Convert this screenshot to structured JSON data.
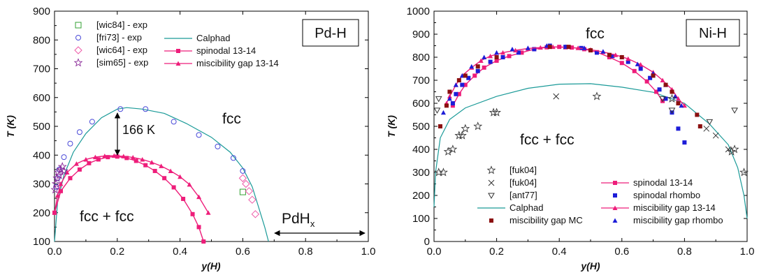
{
  "chart_data": [
    {
      "type": "scatter",
      "title": "Pd-H",
      "xlabel": "y(H)",
      "ylabel": "T (K)",
      "xlim": [
        0,
        1.0
      ],
      "ylim": [
        100,
        900
      ],
      "xticks": [
        "0.0",
        "0.2",
        "0.4",
        "0.6",
        "0.8",
        "1.0"
      ],
      "yticks": [
        "100",
        "200",
        "300",
        "400",
        "500",
        "600",
        "700",
        "800",
        "900"
      ],
      "grid": false,
      "legend_left": [
        "[wic84] - exp",
        "[fri73] - exp",
        "[wic64] - exp",
        "[sim65] - exp"
      ],
      "legend_right": [
        "Calphad",
        "spinodal 13-14",
        "miscibility gap 13-14"
      ],
      "annotations": {
        "region_top": "fcc",
        "region_bottom": "fcc + fcc",
        "delta": "166 K",
        "phase_base": "PdH",
        "phase_sub": "x"
      },
      "colors": {
        "calphad": "#1a9a98",
        "pink": "#ee1d7a",
        "wic84": "#33a033",
        "fri73": "#4a4ad8",
        "wic64": "#ee5aa8",
        "sim65": "#8a2a98"
      },
      "series": [
        {
          "name": "Calphad",
          "style": "line",
          "points": [
            [
              0.0,
              100
            ],
            [
              0.01,
              240
            ],
            [
              0.03,
              330
            ],
            [
              0.06,
              410
            ],
            [
              0.1,
              475
            ],
            [
              0.15,
              530
            ],
            [
              0.2,
              560
            ],
            [
              0.23,
              565
            ],
            [
              0.28,
              560
            ],
            [
              0.35,
              545
            ],
            [
              0.42,
              510
            ],
            [
              0.5,
              462
            ],
            [
              0.56,
              410
            ],
            [
              0.6,
              355
            ],
            [
              0.63,
              290
            ],
            [
              0.65,
              220
            ],
            [
              0.67,
              150
            ],
            [
              0.682,
              100
            ]
          ]
        },
        {
          "name": "spinodal 13-14",
          "style": "line-square",
          "points": [
            [
              0.0,
              200
            ],
            [
              0.02,
              275
            ],
            [
              0.05,
              320
            ],
            [
              0.08,
              350
            ],
            [
              0.11,
              372
            ],
            [
              0.14,
              385
            ],
            [
              0.17,
              393
            ],
            [
              0.2,
              395
            ],
            [
              0.23,
              390
            ],
            [
              0.26,
              380
            ],
            [
              0.29,
              365
            ],
            [
              0.32,
              345
            ],
            [
              0.35,
              320
            ],
            [
              0.38,
              288
            ],
            [
              0.41,
              248
            ],
            [
              0.44,
              195
            ],
            [
              0.46,
              150
            ],
            [
              0.475,
              100
            ]
          ]
        },
        {
          "name": "miscibility gap 13-14",
          "style": "line-triangle",
          "points": [
            [
              0.0,
              200
            ],
            [
              0.01,
              260
            ],
            [
              0.02,
              300
            ],
            [
              0.04,
              340
            ],
            [
              0.07,
              370
            ],
            [
              0.1,
              385
            ],
            [
              0.13,
              393
            ],
            [
              0.16,
              397
            ],
            [
              0.19,
              398
            ],
            [
              0.22,
              396
            ],
            [
              0.25,
              392
            ],
            [
              0.28,
              385
            ],
            [
              0.31,
              375
            ],
            [
              0.34,
              362
            ],
            [
              0.37,
              345
            ],
            [
              0.4,
              325
            ],
            [
              0.43,
              298
            ],
            [
              0.46,
              255
            ],
            [
              0.49,
              200
            ]
          ]
        },
        {
          "name": "[wic84] - exp",
          "style": "square",
          "points": [
            [
              0.6,
              272
            ]
          ]
        },
        {
          "name": "[fri73] - exp",
          "style": "circle",
          "points": [
            [
              0.005,
              290
            ],
            [
              0.01,
              320
            ],
            [
              0.015,
              350
            ],
            [
              0.03,
              393
            ],
            [
              0.05,
              440
            ],
            [
              0.08,
              480
            ],
            [
              0.12,
              516
            ],
            [
              0.21,
              560
            ],
            [
              0.29,
              560
            ],
            [
              0.38,
              516
            ],
            [
              0.46,
              470
            ],
            [
              0.52,
              430
            ],
            [
              0.57,
              390
            ],
            [
              0.6,
              345
            ]
          ]
        },
        {
          "name": "[wic64] - exp",
          "style": "diamond",
          "points": [
            [
              0.6,
              320
            ],
            [
              0.61,
              300
            ],
            [
              0.62,
              275
            ],
            [
              0.63,
              245
            ],
            [
              0.64,
              195
            ]
          ]
        },
        {
          "name": "[sim65] - exp",
          "style": "star",
          "points": [
            [
              0.002,
              280
            ],
            [
              0.005,
              300
            ],
            [
              0.008,
              320
            ],
            [
              0.012,
              340
            ],
            [
              0.02,
              350
            ],
            [
              0.025,
              360
            ],
            [
              0.03,
              345
            ],
            [
              0.015,
              330
            ]
          ]
        }
      ]
    },
    {
      "type": "scatter",
      "title": "Ni-H",
      "xlabel": "y(H)",
      "ylabel": "T (K)",
      "xlim": [
        0,
        1.0
      ],
      "ylim": [
        0,
        1000
      ],
      "xticks": [
        "0.0",
        "0.2",
        "0.4",
        "0.6",
        "0.8",
        "1.0"
      ],
      "yticks": [
        "0",
        "100",
        "200",
        "300",
        "400",
        "500",
        "600",
        "700",
        "800",
        "900",
        "1000"
      ],
      "grid": false,
      "legend_left": [
        "[fuk04]",
        "[fuk04]",
        "[ant77]",
        "Calphad",
        "miscibility gap MC"
      ],
      "legend_right": [
        "spinodal 13-14",
        "spinodal rhombo",
        "miscibility gap 13-14",
        "miscibility gap rhombo"
      ],
      "annotations": {
        "region_top": "fcc",
        "region_bottom": "fcc + fcc"
      },
      "colors": {
        "calphad": "#1a9a98",
        "pink": "#ee1d7a",
        "rhombo": "#1d1dd8",
        "mc": "#8b1010",
        "exp": "#333333"
      },
      "series": [
        {
          "name": "Calphad",
          "style": "line",
          "points": [
            [
              0.0,
              150
            ],
            [
              0.005,
              300
            ],
            [
              0.02,
              450
            ],
            [
              0.05,
              530
            ],
            [
              0.1,
              580
            ],
            [
              0.2,
              630
            ],
            [
              0.3,
              665
            ],
            [
              0.4,
              683
            ],
            [
              0.5,
              685
            ],
            [
              0.6,
              670
            ],
            [
              0.7,
              648
            ],
            [
              0.8,
              600
            ],
            [
              0.88,
              510
            ],
            [
              0.94,
              420
            ],
            [
              0.97,
              320
            ],
            [
              0.99,
              200
            ],
            [
              1.0,
              100
            ]
          ]
        },
        {
          "name": "spinodal 13-14",
          "style": "line-square",
          "points": [
            [
              0.06,
              590
            ],
            [
              0.08,
              640
            ],
            [
              0.1,
              680
            ],
            [
              0.13,
              720
            ],
            [
              0.16,
              755
            ],
            [
              0.2,
              785
            ],
            [
              0.24,
              805
            ],
            [
              0.28,
              820
            ],
            [
              0.32,
              835
            ],
            [
              0.36,
              843
            ],
            [
              0.4,
              845
            ],
            [
              0.44,
              842
            ],
            [
              0.48,
              835
            ],
            [
              0.52,
              822
            ],
            [
              0.56,
              800
            ],
            [
              0.6,
              775
            ],
            [
              0.64,
              740
            ],
            [
              0.68,
              695
            ],
            [
              0.71,
              650
            ],
            [
              0.73,
              610
            ]
          ]
        },
        {
          "name": "spinodal rhombo",
          "style": "square",
          "points": [
            [
              0.06,
              600
            ],
            [
              0.07,
              640
            ],
            [
              0.09,
              680
            ],
            [
              0.11,
              710
            ],
            [
              0.14,
              740
            ],
            [
              0.18,
              780
            ],
            [
              0.22,
              800
            ],
            [
              0.27,
              820
            ],
            [
              0.32,
              835
            ],
            [
              0.37,
              850
            ],
            [
              0.42,
              845
            ],
            [
              0.47,
              840
            ],
            [
              0.52,
              820
            ],
            [
              0.57,
              805
            ],
            [
              0.62,
              780
            ],
            [
              0.66,
              750
            ],
            [
              0.69,
              710
            ],
            [
              0.72,
              660
            ],
            [
              0.74,
              620
            ],
            [
              0.76,
              560
            ],
            [
              0.78,
              490
            ],
            [
              0.8,
              430
            ]
          ]
        },
        {
          "name": "miscibility gap 13-14",
          "style": "line-triangle",
          "points": [
            [
              0.04,
              600
            ],
            [
              0.05,
              630
            ],
            [
              0.07,
              680
            ],
            [
              0.09,
              720
            ],
            [
              0.12,
              755
            ],
            [
              0.15,
              785
            ],
            [
              0.18,
              805
            ],
            [
              0.22,
              820
            ],
            [
              0.26,
              830
            ],
            [
              0.3,
              838
            ],
            [
              0.34,
              842
            ],
            [
              0.38,
              845
            ],
            [
              0.42,
              843
            ],
            [
              0.46,
              840
            ],
            [
              0.5,
              833
            ],
            [
              0.54,
              823
            ],
            [
              0.58,
              810
            ],
            [
              0.62,
              793
            ],
            [
              0.66,
              768
            ],
            [
              0.7,
              735
            ],
            [
              0.73,
              700
            ],
            [
              0.76,
              660
            ],
            [
              0.78,
              620
            ],
            [
              0.8,
              590
            ]
          ]
        },
        {
          "name": "miscibility gap rhombo",
          "style": "triangle",
          "points": [
            [
              0.03,
              560
            ],
            [
              0.05,
              620
            ],
            [
              0.07,
              680
            ],
            [
              0.09,
              720
            ],
            [
              0.12,
              760
            ],
            [
              0.16,
              800
            ],
            [
              0.2,
              820
            ],
            [
              0.25,
              835
            ],
            [
              0.3,
              840
            ],
            [
              0.36,
              850
            ],
            [
              0.42,
              845
            ],
            [
              0.48,
              840
            ],
            [
              0.54,
              825
            ],
            [
              0.6,
              800
            ],
            [
              0.65,
              770
            ],
            [
              0.7,
              730
            ],
            [
              0.74,
              680
            ],
            [
              0.77,
              630
            ],
            [
              0.79,
              590
            ]
          ]
        },
        {
          "name": "miscibility gap MC",
          "style": "square-filled",
          "points": [
            [
              0.02,
              500
            ],
            [
              0.04,
              590
            ],
            [
              0.05,
              650
            ],
            [
              0.08,
              700
            ],
            [
              0.1,
              720
            ],
            [
              0.14,
              760
            ],
            [
              0.2,
              800
            ],
            [
              0.37,
              845
            ],
            [
              0.43,
              845
            ],
            [
              0.5,
              830
            ],
            [
              0.56,
              810
            ],
            [
              0.6,
              800
            ],
            [
              0.7,
              720
            ],
            [
              0.74,
              680
            ],
            [
              0.76,
              650
            ],
            [
              0.78,
              600
            ],
            [
              0.84,
              550
            ],
            [
              0.85,
              500
            ]
          ]
        },
        {
          "name": "[fuk04]",
          "style": "star",
          "points": [
            [
              0.015,
              300
            ],
            [
              0.03,
              300
            ],
            [
              0.045,
              390
            ],
            [
              0.06,
              400
            ],
            [
              0.08,
              460
            ],
            [
              0.09,
              460
            ],
            [
              0.1,
              490
            ],
            [
              0.14,
              500
            ],
            [
              0.19,
              560
            ],
            [
              0.2,
              560
            ],
            [
              0.52,
              630
            ],
            [
              0.76,
              620
            ],
            [
              0.95,
              390
            ],
            [
              0.96,
              400
            ],
            [
              0.99,
              300
            ]
          ]
        },
        {
          "name": "[fuk04]",
          "style": "x",
          "points": [
            [
              0.39,
              630
            ],
            [
              0.87,
              490
            ],
            [
              0.9,
              460
            ],
            [
              0.94,
              400
            ]
          ]
        },
        {
          "name": "[ant77]",
          "style": "nabla",
          "points": [
            [
              0.01,
              570
            ],
            [
              0.015,
              620
            ],
            [
              0.73,
              620
            ],
            [
              0.76,
              570
            ],
            [
              0.88,
              520
            ],
            [
              0.96,
              570
            ]
          ]
        }
      ]
    }
  ]
}
